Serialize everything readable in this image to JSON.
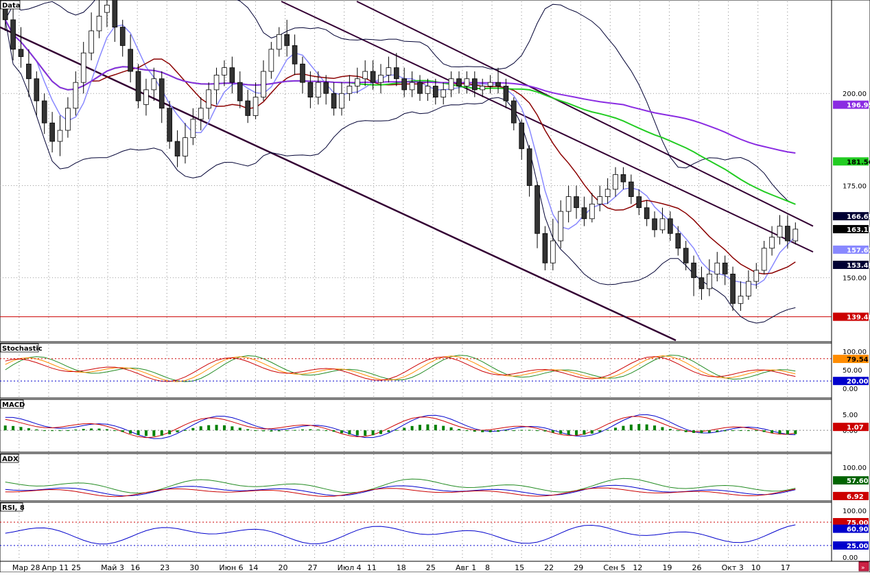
{
  "panels": {
    "main": {
      "title": "Data"
    },
    "stoch": {
      "title": "Stochastic"
    },
    "macd": {
      "title": "MACD"
    },
    "adx": {
      "title": "ADX"
    },
    "rsi": {
      "title": "RSI, 8"
    }
  },
  "colors": {
    "up_candle": "#ffffff",
    "down_candle": "#333333",
    "ma_short": "#8b0000",
    "ma_mid": "#22cc22",
    "ma_long": "#8a2be2",
    "bollinger": "#000033",
    "bollinger_mid": "#8888ff",
    "channel": "#330033",
    "support": "#cc0000"
  },
  "price_axis": {
    "ticks": [
      "200.00",
      "175.00",
      "150.00"
    ],
    "badges": [
      {
        "label": "196.95",
        "bg": "#8a2be2",
        "fg": "#ffffff"
      },
      {
        "label": "181.56",
        "bg": "#22cc22",
        "fg": "#000000"
      },
      {
        "label": "166.69",
        "bg": "#000033",
        "fg": "#ffffff"
      },
      {
        "label": "163.18",
        "bg": "#000000",
        "fg": "#ffffff"
      },
      {
        "label": "157.61",
        "bg": "#8888ff",
        "fg": "#ffffff"
      },
      {
        "label": "153.49",
        "bg": "#000033",
        "fg": "#ffffff"
      },
      {
        "label": "139.40",
        "bg": "#cc0000",
        "fg": "#ffffff"
      }
    ]
  },
  "stoch_axis": {
    "ticks": [
      "100.00",
      "50.00",
      "0.00"
    ],
    "badges": [
      {
        "label": "79.54",
        "bg": "#ff8c00",
        "fg": "#000000"
      },
      {
        "label": "20.00",
        "bg": "#0000cc",
        "fg": "#ffffff"
      }
    ]
  },
  "macd_axis": {
    "ticks": [
      "5.00",
      "0.00"
    ],
    "badges": [
      {
        "label": "1.07",
        "bg": "#cc0000",
        "fg": "#ffffff"
      }
    ]
  },
  "adx_axis": {
    "ticks": [
      "100.00"
    ],
    "badges": [
      {
        "label": "57.60",
        "bg": "#006400",
        "fg": "#ffffff"
      },
      {
        "label": "6.92",
        "bg": "#cc0000",
        "fg": "#ffffff"
      }
    ]
  },
  "rsi_axis": {
    "ticks": [
      "100.00",
      "0.00"
    ],
    "badges": [
      {
        "label": "75.00",
        "bg": "#cc0000",
        "fg": "#ffffff"
      },
      {
        "label": "60.90",
        "bg": "#0000cc",
        "fg": "#ffffff"
      },
      {
        "label": "25.00",
        "bg": "#0000cc",
        "fg": "#ffffff"
      }
    ]
  },
  "date_axis": {
    "labels": [
      "Мар 28",
      "Апр 11",
      "25",
      "Май 3",
      "16",
      "23",
      "30",
      "Июн 6",
      "14",
      "20",
      "27",
      "Июл 4",
      "11",
      "18",
      "25",
      "Авг 1",
      "8",
      "15",
      "22",
      "29",
      "Сен 5",
      "12",
      "19",
      "26",
      "Окт 3",
      "10",
      "17"
    ]
  },
  "chart_data": {
    "type": "candlestick",
    "title": "Data",
    "ylim": [
      133,
      225
    ],
    "support_level": 139.4,
    "last_close": 163.18,
    "ma_values": {
      "ma_long": 196.95,
      "ma_mid": 181.56
    },
    "bollinger": {
      "upper": 166.69,
      "middle": 157.61,
      "lower": 153.49
    },
    "candles": [
      {
        "o": 223.0,
        "c": 220.0,
        "h": 227.0,
        "l": 217.0
      },
      {
        "o": 220.0,
        "c": 212.0,
        "h": 224.0,
        "l": 209.0
      },
      {
        "o": 212.0,
        "c": 210.0,
        "h": 218.0,
        "l": 207.0
      },
      {
        "o": 208.0,
        "c": 204.0,
        "h": 212.0,
        "l": 199.0
      },
      {
        "o": 204.0,
        "c": 198.0,
        "h": 206.0,
        "l": 194.0
      },
      {
        "o": 198.0,
        "c": 192.0,
        "h": 200.0,
        "l": 189.0
      },
      {
        "o": 192.0,
        "c": 187.0,
        "h": 195.0,
        "l": 184.0
      },
      {
        "o": 187.0,
        "c": 190.0,
        "h": 194.0,
        "l": 183.0
      },
      {
        "o": 190.0,
        "c": 196.0,
        "h": 199.0,
        "l": 188.0
      },
      {
        "o": 196.0,
        "c": 203.0,
        "h": 206.0,
        "l": 194.0
      },
      {
        "o": 203.0,
        "c": 211.0,
        "h": 214.0,
        "l": 200.0
      },
      {
        "o": 211.0,
        "c": 217.0,
        "h": 222.0,
        "l": 209.0
      },
      {
        "o": 217.0,
        "c": 221.0,
        "h": 228.0,
        "l": 215.0
      },
      {
        "o": 222.0,
        "c": 224.0,
        "h": 229.0,
        "l": 218.0
      },
      {
        "o": 226.0,
        "c": 218.0,
        "h": 229.0,
        "l": 214.0
      },
      {
        "o": 218.0,
        "c": 213.0,
        "h": 220.0,
        "l": 210.0
      },
      {
        "o": 212.0,
        "c": 206.0,
        "h": 216.0,
        "l": 203.0
      },
      {
        "o": 206.0,
        "c": 198.0,
        "h": 208.0,
        "l": 196.0
      },
      {
        "o": 197.0,
        "c": 201.0,
        "h": 204.0,
        "l": 194.0
      },
      {
        "o": 201.0,
        "c": 204.0,
        "h": 207.0,
        "l": 198.0
      },
      {
        "o": 204.0,
        "c": 196.0,
        "h": 206.0,
        "l": 192.0
      },
      {
        "o": 196.0,
        "c": 187.0,
        "h": 198.0,
        "l": 185.0
      },
      {
        "o": 187.0,
        "c": 183.0,
        "h": 190.0,
        "l": 180.0
      },
      {
        "o": 183.0,
        "c": 188.0,
        "h": 192.0,
        "l": 181.0
      },
      {
        "o": 188.0,
        "c": 193.0,
        "h": 196.0,
        "l": 186.0
      },
      {
        "o": 193.0,
        "c": 196.0,
        "h": 199.0,
        "l": 190.0
      },
      {
        "o": 196.0,
        "c": 201.0,
        "h": 203.0,
        "l": 193.0
      },
      {
        "o": 201.0,
        "c": 205.0,
        "h": 207.0,
        "l": 197.0
      },
      {
        "o": 205.0,
        "c": 207.0,
        "h": 209.0,
        "l": 202.0
      },
      {
        "o": 207.0,
        "c": 203.0,
        "h": 210.0,
        "l": 200.0
      },
      {
        "o": 203.0,
        "c": 198.0,
        "h": 206.0,
        "l": 196.0
      },
      {
        "o": 198.0,
        "c": 194.0,
        "h": 201.0,
        "l": 192.0
      },
      {
        "o": 194.0,
        "c": 199.0,
        "h": 203.0,
        "l": 193.0
      },
      {
        "o": 199.0,
        "c": 206.0,
        "h": 209.0,
        "l": 198.0
      },
      {
        "o": 206.0,
        "c": 212.0,
        "h": 214.0,
        "l": 204.0
      },
      {
        "o": 212.0,
        "c": 216.0,
        "h": 218.0,
        "l": 210.0
      },
      {
        "o": 216.0,
        "c": 213.0,
        "h": 220.0,
        "l": 210.0
      },
      {
        "o": 213.0,
        "c": 208.0,
        "h": 216.0,
        "l": 205.0
      },
      {
        "o": 208.0,
        "c": 203.0,
        "h": 210.0,
        "l": 200.0
      },
      {
        "o": 203.0,
        "c": 199.0,
        "h": 206.0,
        "l": 196.0
      },
      {
        "o": 199.0,
        "c": 203.0,
        "h": 206.0,
        "l": 197.0
      },
      {
        "o": 203.0,
        "c": 200.0,
        "h": 205.0,
        "l": 197.0
      },
      {
        "o": 200.0,
        "c": 196.0,
        "h": 203.0,
        "l": 194.0
      },
      {
        "o": 196.0,
        "c": 200.0,
        "h": 203.0,
        "l": 194.0
      },
      {
        "o": 200.0,
        "c": 202.0,
        "h": 205.0,
        "l": 198.0
      },
      {
        "o": 202.0,
        "c": 204.0,
        "h": 207.0,
        "l": 200.0
      },
      {
        "o": 204.0,
        "c": 206.0,
        "h": 209.0,
        "l": 202.0
      },
      {
        "o": 206.0,
        "c": 203.0,
        "h": 209.0,
        "l": 201.0
      },
      {
        "o": 203.0,
        "c": 205.0,
        "h": 208.0,
        "l": 200.0
      },
      {
        "o": 205.0,
        "c": 207.0,
        "h": 210.0,
        "l": 203.0
      },
      {
        "o": 207.0,
        "c": 204.0,
        "h": 211.0,
        "l": 202.0
      },
      {
        "o": 204.0,
        "c": 201.0,
        "h": 207.0,
        "l": 199.0
      },
      {
        "o": 201.0,
        "c": 203.0,
        "h": 206.0,
        "l": 199.0
      },
      {
        "o": 203.0,
        "c": 200.0,
        "h": 205.0,
        "l": 198.0
      },
      {
        "o": 200.0,
        "c": 202.0,
        "h": 204.0,
        "l": 198.0
      },
      {
        "o": 202.0,
        "c": 199.0,
        "h": 204.0,
        "l": 197.0
      },
      {
        "o": 199.0,
        "c": 201.0,
        "h": 203.0,
        "l": 197.0
      },
      {
        "o": 201.0,
        "c": 204.0,
        "h": 206.0,
        "l": 199.0
      },
      {
        "o": 204.0,
        "c": 202.0,
        "h": 206.0,
        "l": 200.0
      },
      {
        "o": 202.0,
        "c": 204.0,
        "h": 206.0,
        "l": 200.0
      },
      {
        "o": 204.0,
        "c": 201.0,
        "h": 206.0,
        "l": 199.0
      },
      {
        "o": 201.0,
        "c": 202.0,
        "h": 204.0,
        "l": 199.0
      },
      {
        "o": 202.0,
        "c": 203.0,
        "h": 205.0,
        "l": 200.0
      },
      {
        "o": 203.0,
        "c": 202.0,
        "h": 207.0,
        "l": 200.0
      },
      {
        "o": 202.0,
        "c": 198.0,
        "h": 204.0,
        "l": 196.0
      },
      {
        "o": 198.0,
        "c": 192.0,
        "h": 199.0,
        "l": 190.0
      },
      {
        "o": 192.0,
        "c": 185.0,
        "h": 193.0,
        "l": 182.0
      },
      {
        "o": 185.0,
        "c": 175.0,
        "h": 186.0,
        "l": 172.0
      },
      {
        "o": 175.0,
        "c": 162.0,
        "h": 176.0,
        "l": 158.0
      },
      {
        "o": 162.0,
        "c": 154.0,
        "h": 164.0,
        "l": 152.0
      },
      {
        "o": 154.0,
        "c": 160.0,
        "h": 166.0,
        "l": 152.0
      },
      {
        "o": 160.0,
        "c": 168.0,
        "h": 171.0,
        "l": 158.0
      },
      {
        "o": 168.0,
        "c": 172.0,
        "h": 175.0,
        "l": 165.0
      },
      {
        "o": 172.0,
        "c": 169.0,
        "h": 175.0,
        "l": 166.0
      },
      {
        "o": 169.0,
        "c": 166.0,
        "h": 172.0,
        "l": 164.0
      },
      {
        "o": 166.0,
        "c": 170.0,
        "h": 173.0,
        "l": 165.0
      },
      {
        "o": 170.0,
        "c": 172.0,
        "h": 175.0,
        "l": 168.0
      },
      {
        "o": 172.0,
        "c": 174.0,
        "h": 177.0,
        "l": 170.0
      },
      {
        "o": 174.0,
        "c": 178.0,
        "h": 180.0,
        "l": 172.0
      },
      {
        "o": 178.0,
        "c": 176.0,
        "h": 180.0,
        "l": 174.0
      },
      {
        "o": 176.0,
        "c": 172.0,
        "h": 178.0,
        "l": 170.0
      },
      {
        "o": 172.0,
        "c": 169.0,
        "h": 174.0,
        "l": 167.0
      },
      {
        "o": 169.0,
        "c": 166.0,
        "h": 171.0,
        "l": 164.0
      },
      {
        "o": 166.0,
        "c": 163.0,
        "h": 168.0,
        "l": 161.0
      },
      {
        "o": 163.0,
        "c": 166.0,
        "h": 169.0,
        "l": 162.0
      },
      {
        "o": 166.0,
        "c": 162.0,
        "h": 168.0,
        "l": 160.0
      },
      {
        "o": 162.0,
        "c": 158.0,
        "h": 164.0,
        "l": 156.0
      },
      {
        "o": 158.0,
        "c": 154.0,
        "h": 160.0,
        "l": 152.0
      },
      {
        "o": 154.0,
        "c": 150.0,
        "h": 156.0,
        "l": 145.0
      },
      {
        "o": 150.0,
        "c": 147.0,
        "h": 153.0,
        "l": 144.0
      },
      {
        "o": 147.0,
        "c": 151.0,
        "h": 155.0,
        "l": 145.0
      },
      {
        "o": 151.0,
        "c": 154.0,
        "h": 157.0,
        "l": 149.0
      },
      {
        "o": 154.0,
        "c": 151.0,
        "h": 156.0,
        "l": 148.0
      },
      {
        "o": 151.0,
        "c": 143.0,
        "h": 153.0,
        "l": 141.0
      },
      {
        "o": 143.0,
        "c": 145.0,
        "h": 149.0,
        "l": 141.0
      },
      {
        "o": 145.0,
        "c": 149.0,
        "h": 152.0,
        "l": 144.0
      },
      {
        "o": 149.0,
        "c": 152.0,
        "h": 154.0,
        "l": 147.0
      },
      {
        "o": 152.0,
        "c": 158.0,
        "h": 160.0,
        "l": 151.0
      },
      {
        "o": 158.0,
        "c": 161.0,
        "h": 164.0,
        "l": 156.0
      },
      {
        "o": 161.0,
        "c": 164.0,
        "h": 167.0,
        "l": 159.0
      },
      {
        "o": 164.0,
        "c": 160.0,
        "h": 167.0,
        "l": 158.0
      },
      {
        "o": 160.0,
        "c": 163.18,
        "h": 165.0,
        "l": 159.0
      }
    ],
    "indicators": {
      "stochastic": {
        "last": 79.54,
        "levels": [
          80,
          20
        ]
      },
      "macd": {
        "last": 1.07
      },
      "adx": {
        "values": [
          57.6,
          6.92
        ]
      },
      "rsi": {
        "last": 60.9,
        "levels": [
          75,
          25
        ]
      }
    }
  }
}
